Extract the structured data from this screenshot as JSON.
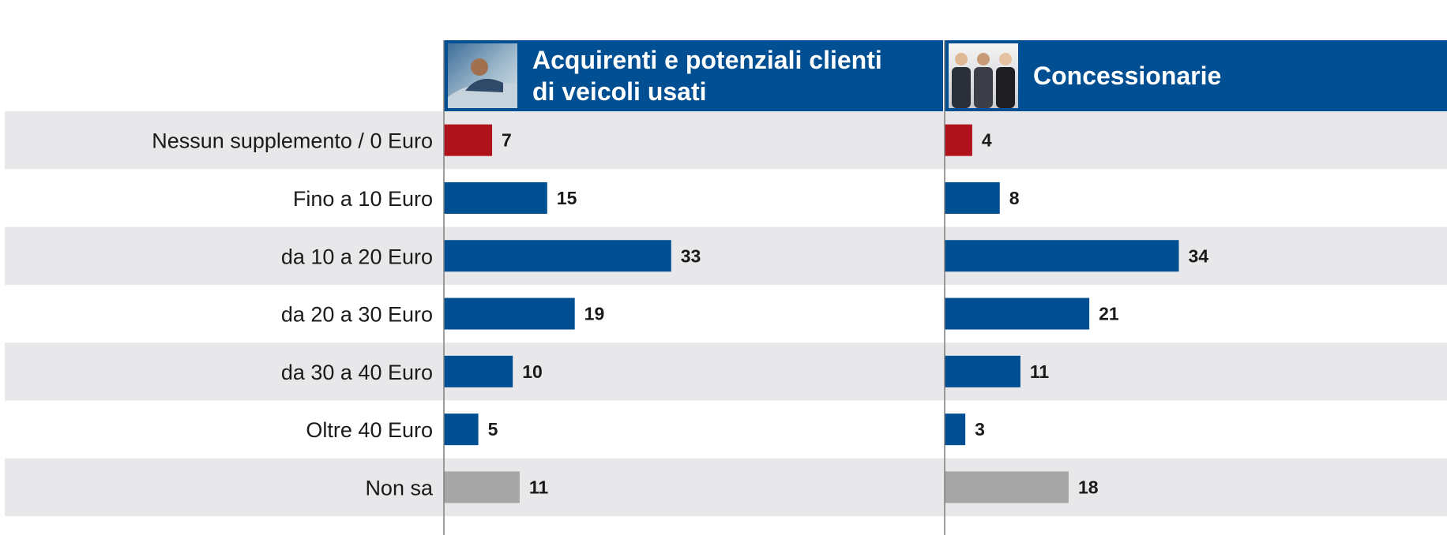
{
  "chart_data": {
    "type": "bar",
    "orientation": "horizontal",
    "categories": [
      "Nessun supplemento / 0 Euro",
      "Fino a 10 Euro",
      "da 10 a 20 Euro",
      "da 20 a 30 Euro",
      "da 30 a 40 Euro",
      "Oltre 40 Euro",
      "Non sa"
    ],
    "series": [
      {
        "name": "Acquirenti e potenziali clienti di veicoli usati",
        "title_lines": [
          "Acquirenti e potenziali clienti",
          "di veicoli usati"
        ],
        "image": "car-buyer-photo",
        "values": [
          7,
          15,
          33,
          19,
          10,
          5,
          11
        ]
      },
      {
        "name": "Concessionarie",
        "title_lines": [
          "Concessionarie"
        ],
        "image": "dealership-photo",
        "values": [
          4,
          8,
          34,
          21,
          11,
          3,
          18
        ]
      }
    ],
    "bar_colors": [
      "#b0121b",
      "#004f93",
      "#004f93",
      "#004f93",
      "#004f93",
      "#004f93",
      "#a6a6a6"
    ],
    "header_color": "#004f93",
    "stripe_color": "#e8e8ea",
    "grid": false,
    "legend": "top"
  }
}
